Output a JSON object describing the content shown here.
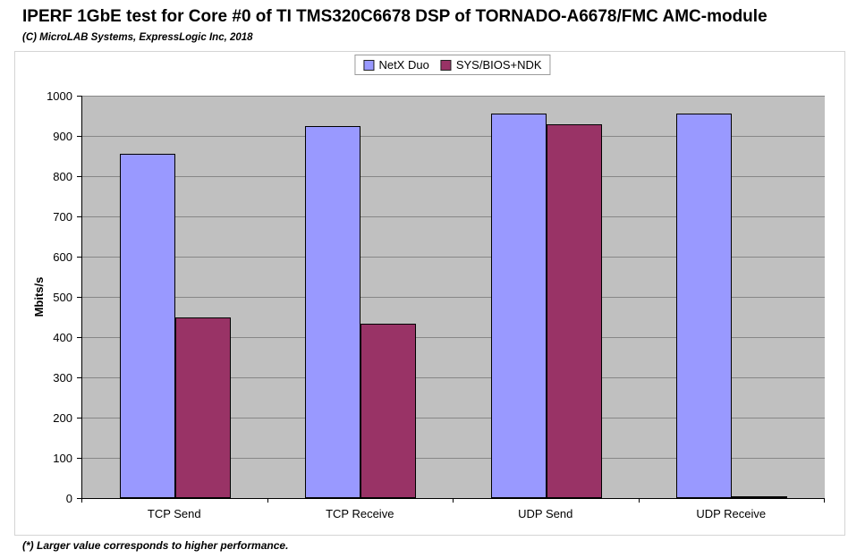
{
  "page": {
    "title": "IPERF 1GbE test for Core #0 of TI TMS320C6678 DSP of TORNADO-A6678/FMC AMC-module",
    "subtitle": "(C) MicroLAB Systems, ExpressLogic Inc, 2018",
    "footnote": "(*) Larger value corresponds to higher performance."
  },
  "chart_data": {
    "type": "bar",
    "categories": [
      "TCP Send",
      "TCP Receive",
      "UDP Send",
      "UDP Receive"
    ],
    "series": [
      {
        "name": "NetX Duo",
        "color": "#9999FF",
        "values": [
          855,
          925,
          955,
          955
        ]
      },
      {
        "name": "SYS/BIOS+NDK",
        "color": "#993366",
        "values": [
          448,
          433,
          928,
          3
        ]
      }
    ],
    "title": "IPERF 1GbE test for Core #0 of TI TMS320C6678 DSP of TORNADO-A6678/FMC AMC-module",
    "xlabel": "",
    "ylabel": "Mbits/s",
    "ylim": [
      0,
      1000
    ],
    "ytick_step": 100,
    "ytick_labels": [
      0,
      100,
      200,
      300,
      400,
      500,
      600,
      700,
      800,
      900,
      1000
    ],
    "grid": true,
    "legend_position": "top-center",
    "plot_bg": "#C0C0C0",
    "grid_color": "#878787"
  }
}
